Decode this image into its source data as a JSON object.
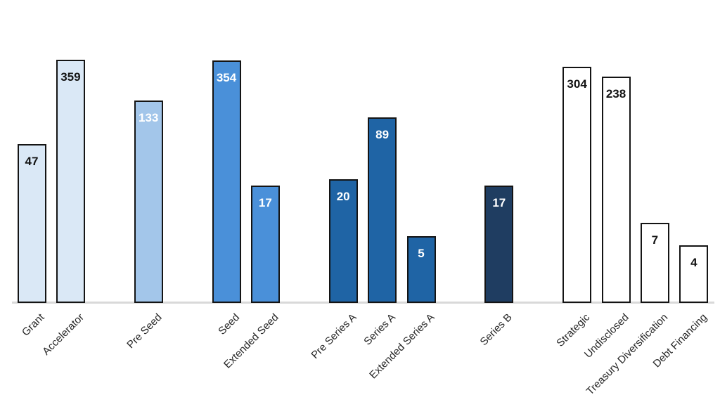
{
  "page": {
    "background_color": "#FFFFFF"
  },
  "chart_data": {
    "type": "bar",
    "title": "",
    "xlabel": "",
    "ylabel": "",
    "y_scale": "log10",
    "y_baseline_value": 1,
    "y_axis_visible": false,
    "grid": "off",
    "legend": "none",
    "value_labels_position": "inside-end",
    "x_tick_rotation_deg": 45,
    "axis_line_color": "#D9D9D9",
    "bar_border_color": "#141414",
    "category_label_color": "#262626",
    "categories": [
      "Grant",
      "Accelerator",
      "Pre Seed",
      "Seed",
      "Extended Seed",
      "Pre Series A",
      "Series A",
      "Extended Series A",
      "Series B",
      "Strategic",
      "Undisclosed",
      "Treasury Diversification",
      "Debt Financing"
    ],
    "values": [
      47,
      359,
      133,
      354,
      17,
      20,
      89,
      5,
      17,
      304,
      238,
      7,
      4
    ],
    "groups": [
      {
        "fill": "#DAE8F6",
        "value_label_color": "#141414",
        "bars": [
          {
            "category": "Grant",
            "value": 47
          },
          {
            "category": "Accelerator",
            "value": 359
          }
        ]
      },
      {
        "fill": "#A3C6EA",
        "value_label_color": "#FFFFFF",
        "bars": [
          {
            "category": "Pre Seed",
            "value": 133
          }
        ]
      },
      {
        "fill": "#4A90D9",
        "value_label_color": "#FFFFFF",
        "bars": [
          {
            "category": "Seed",
            "value": 354
          },
          {
            "category": "Extended Seed",
            "value": 17
          }
        ]
      },
      {
        "fill": "#1F64A5",
        "value_label_color": "#FFFFFF",
        "bars": [
          {
            "category": "Pre Series A",
            "value": 20
          },
          {
            "category": "Series A",
            "value": 89
          },
          {
            "category": "Extended Series A",
            "value": 5
          }
        ]
      },
      {
        "fill": "#1F3D61",
        "value_label_color": "#FFFFFF",
        "bars": [
          {
            "category": "Series B",
            "value": 17
          }
        ]
      },
      {
        "fill": "#FFFFFF",
        "value_label_color": "#141414",
        "bars": [
          {
            "category": "Strategic",
            "value": 304
          },
          {
            "category": "Undisclosed",
            "value": 238
          },
          {
            "category": "Treasury Diversification",
            "value": 7
          },
          {
            "category": "Debt Financing",
            "value": 4
          }
        ]
      }
    ]
  }
}
